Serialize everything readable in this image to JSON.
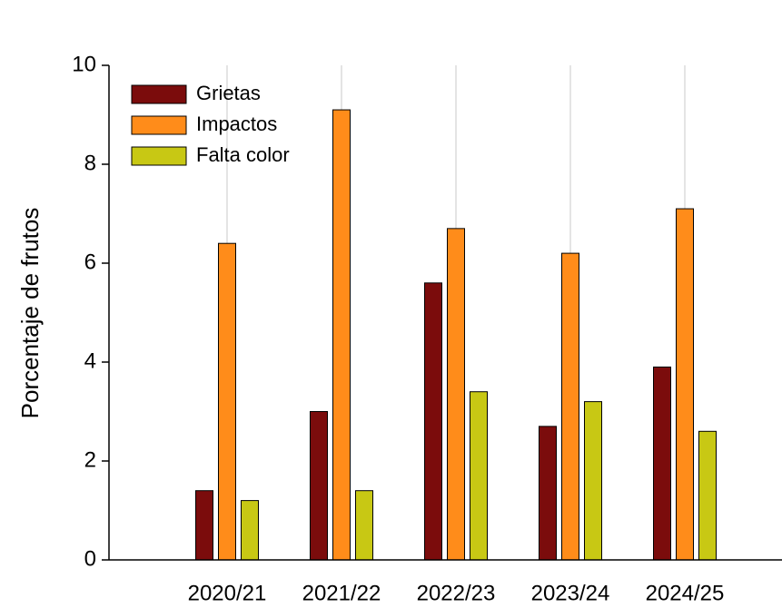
{
  "chart_data": {
    "type": "bar",
    "y_label": "Porcentaje de frutos",
    "categories": [
      "2020/21",
      "2021/22",
      "2022/23",
      "2023/24",
      "2024/25"
    ],
    "series": [
      {
        "name": "Grietas",
        "color": "#7b0c0c",
        "values": [
          1.4,
          3.0,
          5.6,
          2.7,
          3.9
        ]
      },
      {
        "name": "Impactos",
        "color": "#ff8c1a",
        "values": [
          6.4,
          9.1,
          6.7,
          6.2,
          7.1
        ]
      },
      {
        "name": "Falta color",
        "color": "#c8c814",
        "values": [
          1.2,
          1.4,
          3.4,
          3.2,
          2.6
        ]
      }
    ],
    "ylim": [
      0,
      10
    ],
    "yticks": [
      0,
      2,
      4,
      6,
      8,
      10
    ],
    "grid": true,
    "legend": "upper left"
  }
}
